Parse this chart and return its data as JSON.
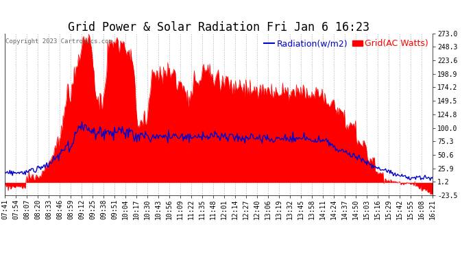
{
  "title": "Grid Power & Solar Radiation Fri Jan 6 16:23",
  "copyright": "Copyright 2023 Cartronics.com",
  "legend_radiation": "Radiation(w/m2)",
  "legend_grid": "Grid(AC Watts)",
  "ylabel_right_values": [
    273.0,
    248.3,
    223.6,
    198.9,
    174.2,
    149.5,
    124.8,
    100.0,
    75.3,
    50.6,
    25.9,
    1.2,
    -23.5
  ],
  "ylim": [
    -23.5,
    273.0
  ],
  "background_color": "#ffffff",
  "grid_color": "#b0b0b0",
  "fill_color": "#ff0000",
  "line_color": "#0000cc",
  "title_fontsize": 12,
  "tick_fontsize": 7,
  "legend_fontsize": 9,
  "time_labels": [
    "07:41",
    "07:54",
    "08:07",
    "08:20",
    "08:33",
    "08:46",
    "08:59",
    "09:12",
    "09:25",
    "09:38",
    "09:51",
    "10:04",
    "10:17",
    "10:30",
    "10:43",
    "10:56",
    "11:09",
    "11:22",
    "11:35",
    "11:48",
    "12:01",
    "12:14",
    "12:27",
    "12:40",
    "13:06",
    "13:19",
    "13:32",
    "13:45",
    "13:58",
    "14:11",
    "14:24",
    "14:37",
    "14:50",
    "15:03",
    "15:16",
    "15:29",
    "15:42",
    "15:55",
    "16:08",
    "16:21"
  ]
}
